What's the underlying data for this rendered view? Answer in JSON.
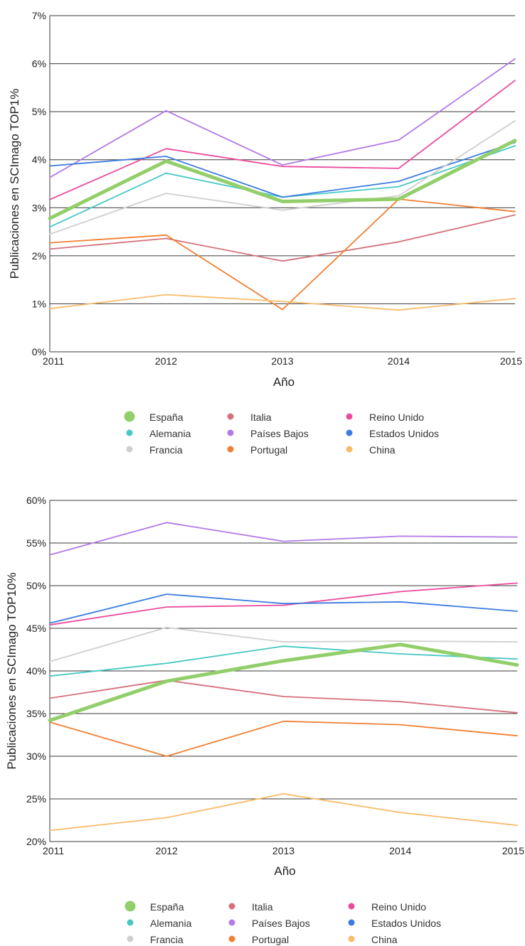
{
  "colors": {
    "España": "#92cf6b",
    "Alemania": "#46c8c3",
    "Francia": "#cfcfcf",
    "Italia": "#d4707c",
    "Países Bajos": "#b27ae6",
    "Portugal": "#f17f32",
    "Reino Unido": "#ea4c9d",
    "Estados Unidos": "#3c7be0",
    "China": "#f9bc6a"
  },
  "chart_data": [
    {
      "type": "line",
      "title": "",
      "xlabel": "Año",
      "ylabel": "Publicaciones en SCImago TOP1%",
      "x": [
        "2011",
        "2012",
        "2013",
        "2014",
        "2015"
      ],
      "ylim": [
        0,
        7
      ],
      "yticks": [
        "0%",
        "1%",
        "2%",
        "3%",
        "4%",
        "5%",
        "6%",
        "7%"
      ],
      "grid": true,
      "legend_position": "bottom",
      "legend_order": [
        "España",
        "Italia",
        "Reino Unido",
        "Alemania",
        "Países Bajos",
        "Estados Unidos",
        "Francia",
        "Portugal",
        "China"
      ],
      "series": [
        {
          "name": "España",
          "values": [
            2.78,
            3.97,
            3.13,
            3.18,
            4.4
          ],
          "highlight": true
        },
        {
          "name": "Italia",
          "values": [
            2.14,
            2.36,
            1.89,
            2.29,
            2.85
          ]
        },
        {
          "name": "Reino Unido",
          "values": [
            3.17,
            4.23,
            3.86,
            3.82,
            5.65
          ]
        },
        {
          "name": "Alemania",
          "values": [
            2.6,
            3.72,
            3.22,
            3.44,
            4.29
          ]
        },
        {
          "name": "Países Bajos",
          "values": [
            3.63,
            5.02,
            3.89,
            4.41,
            6.1
          ]
        },
        {
          "name": "Estados Unidos",
          "values": [
            3.87,
            4.07,
            3.22,
            3.55,
            4.36
          ]
        },
        {
          "name": "Francia",
          "values": [
            2.45,
            3.3,
            2.95,
            3.25,
            4.81
          ]
        },
        {
          "name": "Portugal",
          "values": [
            2.27,
            2.43,
            0.88,
            3.18,
            2.92
          ]
        },
        {
          "name": "China",
          "values": [
            0.9,
            1.19,
            1.05,
            0.87,
            1.11
          ]
        }
      ]
    },
    {
      "type": "line",
      "title": "",
      "xlabel": "Año",
      "ylabel": "Publicaciones en SCImago TOP10%",
      "x": [
        "2011",
        "2012",
        "2013",
        "2014",
        "2015"
      ],
      "ylim": [
        20,
        60
      ],
      "yticks": [
        "20%",
        "25%",
        "30%",
        "35%",
        "40%",
        "45%",
        "50%",
        "55%",
        "60%"
      ],
      "grid": true,
      "legend_position": "bottom",
      "legend_order": [
        "España",
        "Italia",
        "Reino Unido",
        "Alemania",
        "Países Bajos",
        "Estados Unidos",
        "Francia",
        "Portugal",
        "China"
      ],
      "series": [
        {
          "name": "España",
          "values": [
            34.2,
            38.8,
            41.2,
            43.1,
            40.7
          ],
          "highlight": true
        },
        {
          "name": "Italia",
          "values": [
            36.8,
            38.9,
            37.0,
            36.4,
            35.1
          ]
        },
        {
          "name": "Reino Unido",
          "values": [
            45.4,
            47.5,
            47.7,
            49.3,
            50.3
          ]
        },
        {
          "name": "Alemania",
          "values": [
            39.4,
            40.9,
            42.9,
            42.0,
            41.4
          ]
        },
        {
          "name": "Países Bajos",
          "values": [
            53.6,
            57.4,
            55.2,
            55.8,
            55.7
          ]
        },
        {
          "name": "Estados Unidos",
          "values": [
            45.6,
            49.0,
            47.9,
            48.1,
            47.0
          ]
        },
        {
          "name": "Francia",
          "values": [
            41.1,
            45.1,
            43.4,
            43.5,
            43.4
          ]
        },
        {
          "name": "Portugal",
          "values": [
            34.0,
            30.0,
            34.1,
            33.7,
            32.4
          ]
        },
        {
          "name": "China",
          "values": [
            21.3,
            22.8,
            25.6,
            23.4,
            21.9
          ]
        }
      ]
    }
  ]
}
